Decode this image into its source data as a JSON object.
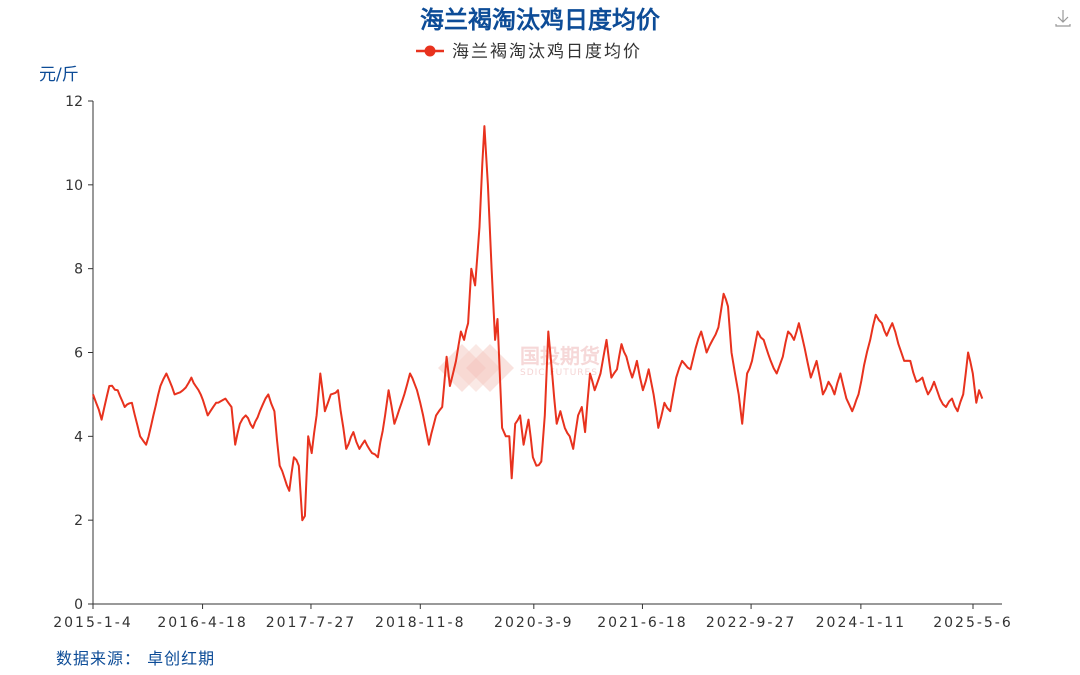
{
  "chart_data": {
    "type": "line",
    "title": "海兰褐淘汰鸡日度均价",
    "ylabel": "元/斤",
    "ylim": [
      0,
      12
    ],
    "yticks": [
      0,
      2,
      4,
      6,
      8,
      10,
      12
    ],
    "xticks": [
      "2015-1-4",
      "2016-4-18",
      "2017-7-27",
      "2018-11-8",
      "2020-3-9",
      "2021-6-18",
      "2022-9-27",
      "2024-1-11",
      "2025-5-6"
    ],
    "xrange": [
      "2015-1-4",
      "2025-9-30"
    ],
    "legend_position": "top-center",
    "grid": false,
    "series": [
      {
        "name": "海兰褐淘汰鸡日度均价",
        "color": "#e8321e",
        "points": [
          [
            "2015-01-04",
            5.0
          ],
          [
            "2015-02-10",
            4.4
          ],
          [
            "2015-03-15",
            5.2
          ],
          [
            "2015-04-20",
            5.1
          ],
          [
            "2015-05-20",
            4.7
          ],
          [
            "2015-06-20",
            4.8
          ],
          [
            "2015-07-25",
            4.0
          ],
          [
            "2015-08-20",
            3.8
          ],
          [
            "2015-09-20",
            4.5
          ],
          [
            "2015-10-20",
            5.2
          ],
          [
            "2015-11-15",
            5.5
          ],
          [
            "2015-12-20",
            5.0
          ],
          [
            "2016-01-25",
            5.1
          ],
          [
            "2016-03-01",
            5.4
          ],
          [
            "2016-04-10",
            5.0
          ],
          [
            "2016-05-10",
            4.5
          ],
          [
            "2016-06-15",
            4.8
          ],
          [
            "2016-07-25",
            4.9
          ],
          [
            "2016-08-20",
            4.7
          ],
          [
            "2016-09-05",
            3.8
          ],
          [
            "2016-09-25",
            4.3
          ],
          [
            "2016-10-20",
            4.5
          ],
          [
            "2016-11-20",
            4.2
          ],
          [
            "2016-12-20",
            4.6
          ],
          [
            "2017-01-25",
            5.0
          ],
          [
            "2017-02-20",
            4.6
          ],
          [
            "2017-03-15",
            3.3
          ],
          [
            "2017-04-05",
            3.0
          ],
          [
            "2017-04-25",
            2.7
          ],
          [
            "2017-05-15",
            3.5
          ],
          [
            "2017-06-05",
            3.3
          ],
          [
            "2017-06-20",
            2.0
          ],
          [
            "2017-07-01",
            2.1
          ],
          [
            "2017-07-15",
            4.0
          ],
          [
            "2017-07-30",
            3.6
          ],
          [
            "2017-08-20",
            4.5
          ],
          [
            "2017-09-05",
            5.5
          ],
          [
            "2017-09-25",
            4.6
          ],
          [
            "2017-10-20",
            5.0
          ],
          [
            "2017-11-20",
            5.1
          ],
          [
            "2017-12-25",
            3.7
          ],
          [
            "2018-01-25",
            4.1
          ],
          [
            "2018-02-20",
            3.7
          ],
          [
            "2018-03-15",
            3.9
          ],
          [
            "2018-04-15",
            3.6
          ],
          [
            "2018-05-10",
            3.5
          ],
          [
            "2018-06-10",
            4.5
          ],
          [
            "2018-06-25",
            5.1
          ],
          [
            "2018-07-20",
            4.3
          ],
          [
            "2018-08-20",
            4.8
          ],
          [
            "2018-09-25",
            5.5
          ],
          [
            "2018-10-25",
            5.1
          ],
          [
            "2018-11-20",
            4.5
          ],
          [
            "2018-12-15",
            3.8
          ],
          [
            "2019-01-15",
            4.5
          ],
          [
            "2019-02-10",
            4.7
          ],
          [
            "2019-03-01",
            5.9
          ],
          [
            "2019-03-15",
            5.2
          ],
          [
            "2019-04-10",
            5.8
          ],
          [
            "2019-05-01",
            6.5
          ],
          [
            "2019-05-15",
            6.3
          ],
          [
            "2019-06-01",
            6.7
          ],
          [
            "2019-06-15",
            8.0
          ],
          [
            "2019-07-01",
            7.6
          ],
          [
            "2019-07-20",
            9.0
          ],
          [
            "2019-08-01",
            10.5
          ],
          [
            "2019-08-10",
            11.4
          ],
          [
            "2019-08-25",
            10.0
          ],
          [
            "2019-09-10",
            8.0
          ],
          [
            "2019-09-25",
            6.3
          ],
          [
            "2019-10-05",
            6.8
          ],
          [
            "2019-10-15",
            5.5
          ],
          [
            "2019-10-25",
            4.2
          ],
          [
            "2019-11-10",
            4.0
          ],
          [
            "2019-11-25",
            4.0
          ],
          [
            "2019-12-05",
            3.0
          ],
          [
            "2019-12-20",
            4.3
          ],
          [
            "2020-01-10",
            4.5
          ],
          [
            "2020-01-25",
            3.8
          ],
          [
            "2020-02-15",
            4.4
          ],
          [
            "2020-03-05",
            3.5
          ],
          [
            "2020-03-20",
            3.3
          ],
          [
            "2020-04-10",
            3.4
          ],
          [
            "2020-04-25",
            4.5
          ],
          [
            "2020-05-10",
            6.5
          ],
          [
            "2020-05-25",
            5.6
          ],
          [
            "2020-06-15",
            4.3
          ],
          [
            "2020-07-01",
            4.6
          ],
          [
            "2020-07-20",
            4.2
          ],
          [
            "2020-08-10",
            4.0
          ],
          [
            "2020-08-25",
            3.7
          ],
          [
            "2020-09-15",
            4.5
          ],
          [
            "2020-10-01",
            4.7
          ],
          [
            "2020-10-15",
            4.1
          ],
          [
            "2020-11-05",
            5.5
          ],
          [
            "2020-11-25",
            5.1
          ],
          [
            "2020-12-20",
            5.5
          ],
          [
            "2021-01-15",
            6.3
          ],
          [
            "2021-02-05",
            5.4
          ],
          [
            "2021-03-01",
            5.6
          ],
          [
            "2021-03-20",
            6.2
          ],
          [
            "2021-04-10",
            5.9
          ],
          [
            "2021-05-05",
            5.4
          ],
          [
            "2021-05-25",
            5.8
          ],
          [
            "2021-06-20",
            5.1
          ],
          [
            "2021-07-15",
            5.6
          ],
          [
            "2021-08-05",
            5.0
          ],
          [
            "2021-08-25",
            4.2
          ],
          [
            "2021-09-20",
            4.8
          ],
          [
            "2021-10-15",
            4.6
          ],
          [
            "2021-11-10",
            5.4
          ],
          [
            "2021-12-05",
            5.8
          ],
          [
            "2022-01-10",
            5.6
          ],
          [
            "2022-02-01",
            6.1
          ],
          [
            "2022-02-25",
            6.5
          ],
          [
            "2022-03-20",
            6.0
          ],
          [
            "2022-04-15",
            6.3
          ],
          [
            "2022-05-10",
            6.6
          ],
          [
            "2022-06-01",
            7.4
          ],
          [
            "2022-06-20",
            7.1
          ],
          [
            "2022-07-05",
            6.0
          ],
          [
            "2022-07-20",
            5.5
          ],
          [
            "2022-08-05",
            5.0
          ],
          [
            "2022-08-20",
            4.3
          ],
          [
            "2022-09-10",
            5.5
          ],
          [
            "2022-10-01",
            5.8
          ],
          [
            "2022-10-25",
            6.5
          ],
          [
            "2022-11-20",
            6.3
          ],
          [
            "2022-12-20",
            5.8
          ],
          [
            "2023-01-15",
            5.5
          ],
          [
            "2023-02-10",
            5.9
          ],
          [
            "2023-03-05",
            6.5
          ],
          [
            "2023-03-30",
            6.3
          ],
          [
            "2023-04-20",
            6.7
          ],
          [
            "2023-05-15",
            6.1
          ],
          [
            "2023-06-10",
            5.4
          ],
          [
            "2023-07-05",
            5.8
          ],
          [
            "2023-08-01",
            5.0
          ],
          [
            "2023-08-25",
            5.3
          ],
          [
            "2023-09-20",
            5.0
          ],
          [
            "2023-10-15",
            5.5
          ],
          [
            "2023-11-10",
            4.9
          ],
          [
            "2023-12-05",
            4.6
          ],
          [
            "2024-01-01",
            5.0
          ],
          [
            "2024-01-25",
            5.7
          ],
          [
            "2024-02-20",
            6.3
          ],
          [
            "2024-03-15",
            6.9
          ],
          [
            "2024-04-10",
            6.7
          ],
          [
            "2024-05-01",
            6.4
          ],
          [
            "2024-05-25",
            6.7
          ],
          [
            "2024-06-20",
            6.2
          ],
          [
            "2024-07-15",
            5.8
          ],
          [
            "2024-08-10",
            5.8
          ],
          [
            "2024-09-05",
            5.3
          ],
          [
            "2024-10-01",
            5.4
          ],
          [
            "2024-10-25",
            5.0
          ],
          [
            "2024-11-20",
            5.3
          ],
          [
            "2024-12-15",
            4.9
          ],
          [
            "2025-01-10",
            4.7
          ],
          [
            "2025-02-05",
            4.9
          ],
          [
            "2025-03-01",
            4.6
          ],
          [
            "2025-03-25",
            5.0
          ],
          [
            "2025-04-15",
            6.0
          ],
          [
            "2025-05-05",
            5.5
          ],
          [
            "2025-05-20",
            4.8
          ],
          [
            "2025-06-01",
            5.1
          ],
          [
            "2025-06-15",
            4.9
          ]
        ]
      }
    ]
  },
  "source_text": "数据来源： 卓创红期",
  "watermark": {
    "text": "国投期货",
    "sub": "SDIC FUTURES"
  },
  "toolbar": {
    "download_icon": "download-icon"
  }
}
